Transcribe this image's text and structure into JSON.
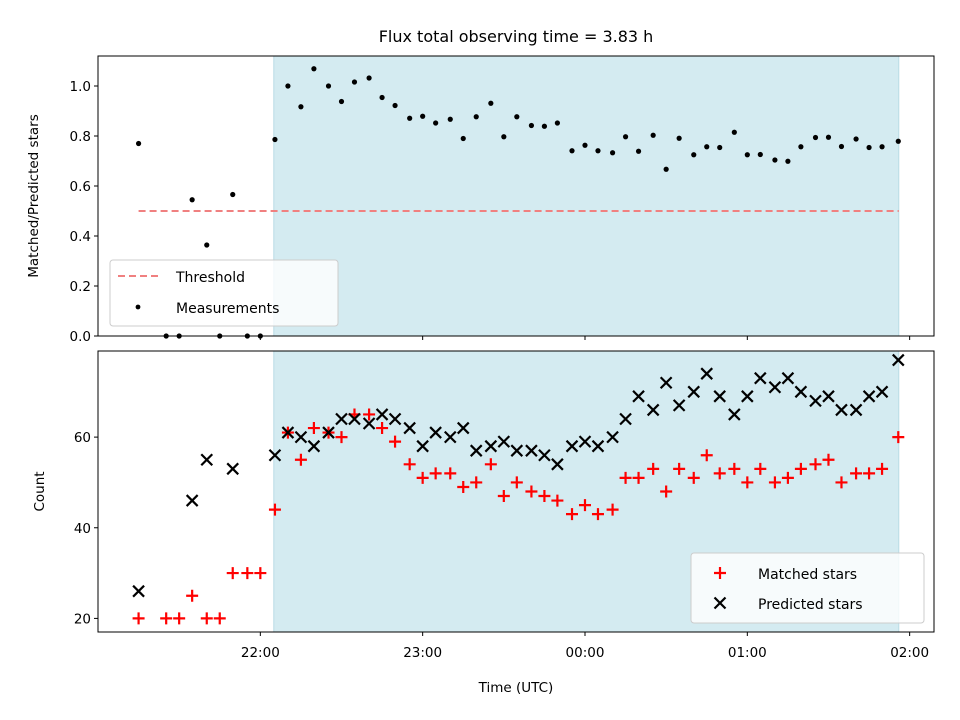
{
  "colors": {
    "observing_band": "#d4ebf1",
    "observing_band_edge": "#b9dbe5",
    "threshold": "#f08080",
    "measurement": "#000000",
    "matched": "#ff0000",
    "predicted": "#000000"
  },
  "x_ticks": [
    {
      "t": 22.0,
      "label": "22:00"
    },
    {
      "t": 23.0,
      "label": "23:00"
    },
    {
      "t": 24.0,
      "label": "00:00"
    },
    {
      "t": 25.0,
      "label": "01:00"
    },
    {
      "t": 26.0,
      "label": "02:00"
    }
  ],
  "chart_data": [
    {
      "type": "scatter",
      "title": "Flux total observing time = 3.83 h",
      "xlabel": "",
      "ylabel": "Matched/Predicted stars",
      "xlim": [
        21.0,
        26.15
      ],
      "ylim": [
        0.0,
        1.12
      ],
      "yticks": [
        {
          "v": 0.0,
          "label": "0.0"
        },
        {
          "v": 0.2,
          "label": "0.2"
        },
        {
          "v": 0.4,
          "label": "0.4"
        },
        {
          "v": 0.6,
          "label": "0.6"
        },
        {
          "v": 0.8,
          "label": "0.8"
        },
        {
          "v": 1.0,
          "label": "1.0"
        }
      ],
      "observing_window": [
        22.083,
        25.933
      ],
      "threshold": {
        "name": "Threshold",
        "y": 0.5,
        "x_range": [
          21.25,
          25.933
        ]
      },
      "legend": {
        "position": "lower-left",
        "entries": [
          "Threshold",
          "Measurements"
        ]
      },
      "series": [
        {
          "name": "Measurements",
          "points": [
            [
              21.25,
              0.77
            ],
            [
              21.42,
              0.0
            ],
            [
              21.5,
              0.0
            ],
            [
              21.58,
              0.545
            ],
            [
              21.67,
              0.364
            ],
            [
              21.75,
              0.0
            ],
            [
              21.83,
              0.566
            ],
            [
              21.92,
              0.0
            ],
            [
              22.0,
              0.0
            ],
            [
              22.09,
              0.786
            ],
            [
              22.17,
              1.0
            ],
            [
              22.25,
              0.917
            ],
            [
              22.33,
              1.069
            ],
            [
              22.42,
              1.0
            ],
            [
              22.5,
              0.938
            ],
            [
              22.58,
              1.016
            ],
            [
              22.67,
              1.032
            ],
            [
              22.75,
              0.954
            ],
            [
              22.83,
              0.922
            ],
            [
              22.92,
              0.871
            ],
            [
              23.0,
              0.879
            ],
            [
              23.08,
              0.852
            ],
            [
              23.17,
              0.867
            ],
            [
              23.25,
              0.79
            ],
            [
              23.33,
              0.877
            ],
            [
              23.42,
              0.931
            ],
            [
              23.5,
              0.797
            ],
            [
              23.58,
              0.877
            ],
            [
              23.67,
              0.842
            ],
            [
              23.75,
              0.839
            ],
            [
              23.83,
              0.852
            ],
            [
              23.92,
              0.741
            ],
            [
              24.0,
              0.763
            ],
            [
              24.08,
              0.741
            ],
            [
              24.17,
              0.733
            ],
            [
              24.25,
              0.797
            ],
            [
              24.33,
              0.739
            ],
            [
              24.42,
              0.803
            ],
            [
              24.5,
              0.667
            ],
            [
              24.58,
              0.791
            ],
            [
              24.67,
              0.725
            ],
            [
              24.75,
              0.757
            ],
            [
              24.83,
              0.754
            ],
            [
              24.92,
              0.815
            ],
            [
              25.0,
              0.725
            ],
            [
              25.08,
              0.726
            ],
            [
              25.17,
              0.704
            ],
            [
              25.25,
              0.699
            ],
            [
              25.33,
              0.757
            ],
            [
              25.42,
              0.794
            ],
            [
              25.5,
              0.795
            ],
            [
              25.58,
              0.758
            ],
            [
              25.67,
              0.788
            ],
            [
              25.75,
              0.754
            ],
            [
              25.83,
              0.757
            ],
            [
              25.93,
              0.779
            ]
          ]
        }
      ]
    },
    {
      "type": "scatter",
      "title": "",
      "xlabel": "Time (UTC)",
      "ylabel": "Count",
      "xlim": [
        21.0,
        26.15
      ],
      "ylim": [
        17,
        79
      ],
      "yticks": [
        {
          "v": 20,
          "label": "20"
        },
        {
          "v": 40,
          "label": "40"
        },
        {
          "v": 60,
          "label": "60"
        }
      ],
      "observing_window": [
        22.083,
        25.933
      ],
      "legend": {
        "position": "lower-right",
        "entries": [
          "Matched stars",
          "Predicted stars"
        ]
      },
      "series": [
        {
          "name": "Matched stars",
          "marker": "plus",
          "points": [
            [
              21.25,
              20
            ],
            [
              21.42,
              20
            ],
            [
              21.5,
              20
            ],
            [
              21.58,
              25
            ],
            [
              21.67,
              20
            ],
            [
              21.75,
              20
            ],
            [
              21.83,
              30
            ],
            [
              21.92,
              30
            ],
            [
              22.0,
              30
            ],
            [
              22.09,
              44
            ],
            [
              22.17,
              61
            ],
            [
              22.25,
              55
            ],
            [
              22.33,
              62
            ],
            [
              22.42,
              61
            ],
            [
              22.5,
              60
            ],
            [
              22.58,
              65
            ],
            [
              22.67,
              65
            ],
            [
              22.75,
              62
            ],
            [
              22.83,
              59
            ],
            [
              22.92,
              54
            ],
            [
              23.0,
              51
            ],
            [
              23.08,
              52
            ],
            [
              23.17,
              52
            ],
            [
              23.25,
              49
            ],
            [
              23.33,
              50
            ],
            [
              23.42,
              54
            ],
            [
              23.5,
              47
            ],
            [
              23.58,
              50
            ],
            [
              23.67,
              48
            ],
            [
              23.75,
              47
            ],
            [
              23.83,
              46
            ],
            [
              23.92,
              43
            ],
            [
              24.0,
              45
            ],
            [
              24.08,
              43
            ],
            [
              24.17,
              44
            ],
            [
              24.25,
              51
            ],
            [
              24.33,
              51
            ],
            [
              24.42,
              53
            ],
            [
              24.5,
              48
            ],
            [
              24.58,
              53
            ],
            [
              24.67,
              51
            ],
            [
              24.75,
              56
            ],
            [
              24.83,
              52
            ],
            [
              24.92,
              53
            ],
            [
              25.0,
              50
            ],
            [
              25.08,
              53
            ],
            [
              25.17,
              50
            ],
            [
              25.25,
              51
            ],
            [
              25.33,
              53
            ],
            [
              25.42,
              54
            ],
            [
              25.5,
              55
            ],
            [
              25.58,
              50
            ],
            [
              25.67,
              52
            ],
            [
              25.75,
              52
            ],
            [
              25.83,
              53
            ],
            [
              25.93,
              60
            ]
          ]
        },
        {
          "name": "Predicted stars",
          "marker": "x",
          "points": [
            [
              21.25,
              26
            ],
            [
              21.58,
              46
            ],
            [
              21.67,
              55
            ],
            [
              21.83,
              53
            ],
            [
              22.09,
              56
            ],
            [
              22.17,
              61
            ],
            [
              22.25,
              60
            ],
            [
              22.33,
              58
            ],
            [
              22.42,
              61
            ],
            [
              22.5,
              64
            ],
            [
              22.58,
              64
            ],
            [
              22.67,
              63
            ],
            [
              22.75,
              65
            ],
            [
              22.83,
              64
            ],
            [
              22.92,
              62
            ],
            [
              23.0,
              58
            ],
            [
              23.08,
              61
            ],
            [
              23.17,
              60
            ],
            [
              23.25,
              62
            ],
            [
              23.33,
              57
            ],
            [
              23.42,
              58
            ],
            [
              23.5,
              59
            ],
            [
              23.58,
              57
            ],
            [
              23.67,
              57
            ],
            [
              23.75,
              56
            ],
            [
              23.83,
              54
            ],
            [
              23.92,
              58
            ],
            [
              24.0,
              59
            ],
            [
              24.08,
              58
            ],
            [
              24.17,
              60
            ],
            [
              24.25,
              64
            ],
            [
              24.33,
              69
            ],
            [
              24.42,
              66
            ],
            [
              24.5,
              72
            ],
            [
              24.58,
              67
            ],
            [
              24.67,
              70
            ],
            [
              24.75,
              74
            ],
            [
              24.83,
              69
            ],
            [
              24.92,
              65
            ],
            [
              25.0,
              69
            ],
            [
              25.08,
              73
            ],
            [
              25.17,
              71
            ],
            [
              25.25,
              73
            ],
            [
              25.33,
              70
            ],
            [
              25.42,
              68
            ],
            [
              25.5,
              69
            ],
            [
              25.58,
              66
            ],
            [
              25.67,
              66
            ],
            [
              25.75,
              69
            ],
            [
              25.83,
              70
            ],
            [
              25.93,
              77
            ]
          ]
        }
      ]
    }
  ]
}
